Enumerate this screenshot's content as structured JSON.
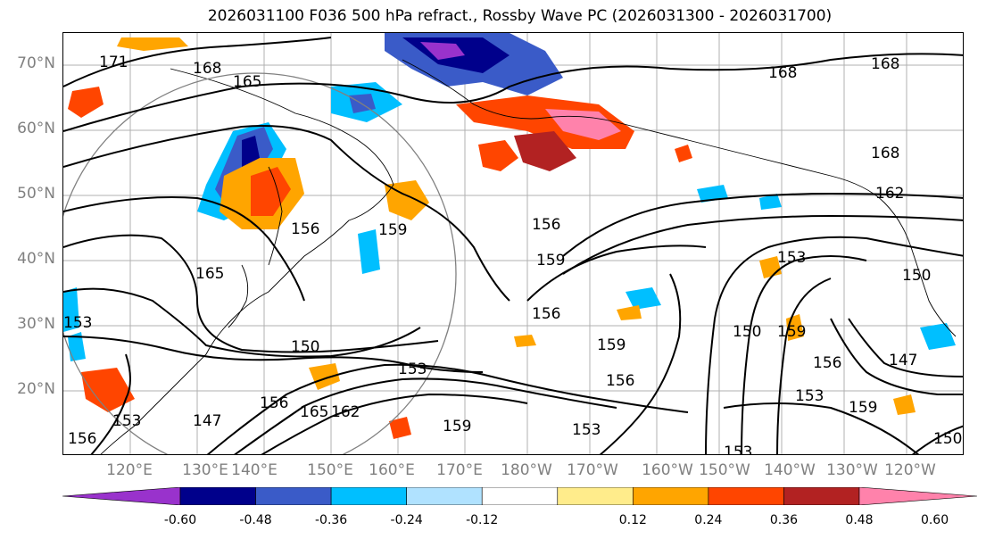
{
  "title": "2026031100 F036 500 hPa refract., Rossby Wave PC (2026031300 - 2026031700)",
  "lat_labels": [
    "70°N",
    "60°N",
    "50°N",
    "40°N",
    "30°N",
    "20°N"
  ],
  "lon_labels": [
    "120°E",
    "130°E",
    "140°E",
    "150°E",
    "160°E",
    "170°E",
    "180°W",
    "170°W",
    "160°W",
    "150°W",
    "140°W",
    "130°W",
    "120°W"
  ],
  "colorbar": {
    "colors": [
      "#9932cc",
      "#00008b",
      "#3a5bc8",
      "#00bfff",
      "#b0e2ff",
      "#ffffff",
      "#ffec8b",
      "#ffa500",
      "#ff4500",
      "#b22222",
      "#ff82ab"
    ],
    "tick_labels": [
      "-0.60",
      "-0.48",
      "-0.36",
      "-0.24",
      "-0.12",
      "0.12",
      "0.24",
      "0.36",
      "0.48",
      "0.60"
    ]
  },
  "contour_labels": [
    {
      "text": "171"
    },
    {
      "text": "168"
    },
    {
      "text": "165"
    },
    {
      "text": "168"
    },
    {
      "text": "168"
    },
    {
      "text": "168"
    },
    {
      "text": "162"
    },
    {
      "text": "156"
    },
    {
      "text": "159"
    },
    {
      "text": "156"
    },
    {
      "text": "159"
    },
    {
      "text": "165"
    },
    {
      "text": "153"
    },
    {
      "text": "150"
    },
    {
      "text": "156"
    },
    {
      "text": "153"
    },
    {
      "text": "159"
    },
    {
      "text": "150"
    },
    {
      "text": "159"
    },
    {
      "text": "147"
    },
    {
      "text": "150"
    },
    {
      "text": "156"
    },
    {
      "text": "153"
    },
    {
      "text": "159"
    },
    {
      "text": "147"
    },
    {
      "text": "165"
    },
    {
      "text": "162"
    },
    {
      "text": "156"
    },
    {
      "text": "153"
    },
    {
      "text": "153"
    },
    {
      "text": "159"
    },
    {
      "text": "153"
    },
    {
      "text": "150"
    },
    {
      "text": "156"
    },
    {
      "text": "153"
    },
    {
      "text": "156"
    }
  ]
}
